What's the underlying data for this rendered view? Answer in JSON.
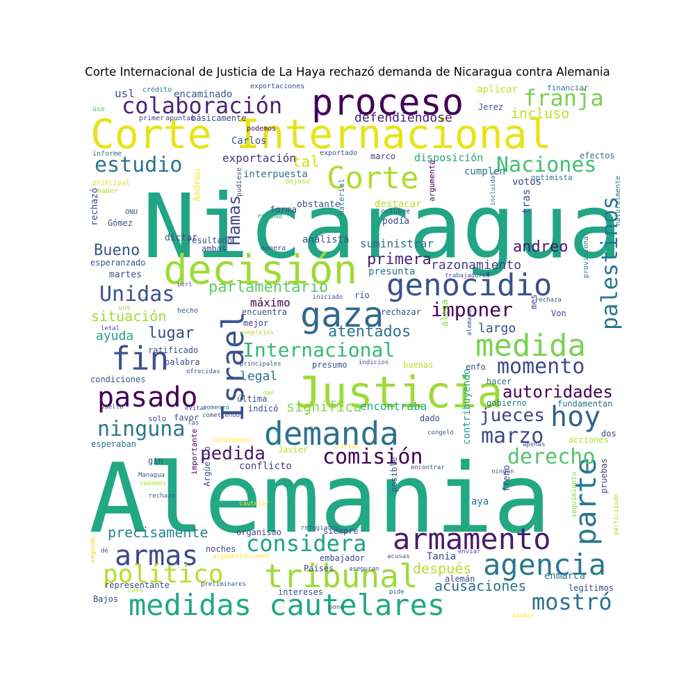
{
  "chart_data": {
    "type": "wordcloud",
    "title": "Corte Internacional de Justicia de La Haya rechazó demanda de Nicaragua contra Alemania",
    "palette": "viridis",
    "words": [
      {
        "text": "Nicaragua",
        "weight": 1.0,
        "color": "#21a585"
      },
      {
        "text": "Alemania",
        "weight": 0.98,
        "color": "#22a884"
      },
      {
        "text": "Corte Internacional",
        "weight": 0.57,
        "color": "#e7e419"
      },
      {
        "text": "Justicia",
        "weight": 0.48,
        "color": "#9fda3a"
      },
      {
        "text": "decisión",
        "weight": 0.46,
        "color": "#9fda3a"
      },
      {
        "text": "proceso",
        "weight": 0.42,
        "color": "#440154"
      },
      {
        "text": "demanda",
        "weight": 0.42,
        "color": "#2c728e"
      },
      {
        "text": "medidas cautelares",
        "weight": 0.4,
        "color": "#22a884"
      },
      {
        "text": "Israel",
        "weight": 0.38,
        "color": "#3b528b"
      },
      {
        "text": "medida",
        "weight": 0.37,
        "color": "#7ad151"
      },
      {
        "text": "Corte",
        "weight": 0.36,
        "color": "#addc30"
      },
      {
        "text": "tribunal",
        "weight": 0.36,
        "color": "#9fda3a"
      },
      {
        "text": "gaza",
        "weight": 0.36,
        "color": "#31688e"
      },
      {
        "text": "genocidio",
        "weight": 0.34,
        "color": "#3b528b"
      },
      {
        "text": "armamento",
        "weight": 0.33,
        "color": "#481a6c"
      },
      {
        "text": "agencia",
        "weight": 0.32,
        "color": "#2a788e"
      },
      {
        "text": "fin",
        "weight": 0.32,
        "color": "#3b528b"
      },
      {
        "text": "pasado",
        "weight": 0.3,
        "color": "#440154"
      },
      {
        "text": "parte",
        "weight": 0.3,
        "color": "#2a788e"
      },
      {
        "text": "palestinos",
        "weight": 0.29,
        "color": "#2a788e"
      },
      {
        "text": "hoy",
        "weight": 0.28,
        "color": "#35608d"
      },
      {
        "text": "armas",
        "weight": 0.27,
        "color": "#3e4989"
      },
      {
        "text": "político",
        "weight": 0.27,
        "color": "#b5de2b"
      },
      {
        "text": "considera",
        "weight": 0.27,
        "color": "#1fa188"
      },
      {
        "text": "mostró",
        "weight": 0.26,
        "color": "#2c728e"
      },
      {
        "text": "franja",
        "weight": 0.26,
        "color": "#7ad151"
      },
      {
        "text": "colaboración",
        "weight": 0.25,
        "color": "#482475"
      },
      {
        "text": "estudio",
        "weight": 0.25,
        "color": "#2c728e"
      },
      {
        "text": "Naciones",
        "weight": 0.25,
        "color": "#42be71"
      },
      {
        "text": "Internacional",
        "weight": 0.24,
        "color": "#35b779"
      },
      {
        "text": "Unidas",
        "weight": 0.24,
        "color": "#3b528b"
      },
      {
        "text": "imponer",
        "weight": 0.23,
        "color": "#440154"
      },
      {
        "text": "momento",
        "weight": 0.23,
        "color": "#3e4989"
      },
      {
        "text": "derecho",
        "weight": 0.23,
        "color": "#52c569"
      },
      {
        "text": "comisión",
        "weight": 0.23,
        "color": "#440154"
      },
      {
        "text": "marzo",
        "weight": 0.22,
        "color": "#3e4989"
      },
      {
        "text": "ninguna",
        "weight": 0.22,
        "color": "#2a788e"
      },
      {
        "text": "jueces",
        "weight": 0.19,
        "color": "#414487"
      },
      {
        "text": "Hamas",
        "weight": 0.19,
        "color": "#3e4989"
      },
      {
        "text": "pedida",
        "weight": 0.19,
        "color": "#481a6c"
      },
      {
        "text": "autoridades",
        "weight": 0.19,
        "color": "#440154"
      },
      {
        "text": "andreo",
        "weight": 0.18,
        "color": "#481a6c"
      },
      {
        "text": "primera",
        "weight": 0.18,
        "color": "#482475"
      },
      {
        "text": "atentados",
        "weight": 0.18,
        "color": "#2c728e"
      },
      {
        "text": "acusaciones",
        "weight": 0.17,
        "color": "#2c728e"
      },
      {
        "text": "precisamente",
        "weight": 0.17,
        "color": "#26828e"
      },
      {
        "text": "parlamentario",
        "weight": 0.17,
        "color": "#5ec962"
      },
      {
        "text": "significa",
        "weight": 0.17,
        "color": "#86d549"
      },
      {
        "text": "lugar",
        "weight": 0.16,
        "color": "#3e4989"
      },
      {
        "text": "Bueno",
        "weight": 0.16,
        "color": "#3b528b"
      },
      {
        "text": "situación",
        "weight": 0.16,
        "color": "#a0da39"
      },
      {
        "text": "incluso",
        "weight": 0.16,
        "color": "#c2df23"
      },
      {
        "text": "tal",
        "weight": 0.16,
        "color": "#d2e21b"
      },
      {
        "text": "razonamiento",
        "weight": 0.15,
        "color": "#433e85"
      },
      {
        "text": "después",
        "weight": 0.15,
        "color": "#b5de2b"
      },
      {
        "text": "legal",
        "weight": 0.14,
        "color": "#2c728e"
      },
      {
        "text": "defendiéndose",
        "weight": 0.14,
        "color": "#482173"
      },
      {
        "text": "largo",
        "weight": 0.13,
        "color": "#3e4989"
      },
      {
        "text": "ayuda",
        "weight": 0.13,
        "color": "#1fa188"
      },
      {
        "text": "exportación",
        "weight": 0.12,
        "color": "#46327e"
      },
      {
        "text": "suministrar",
        "weight": 0.12,
        "color": "#2e6e8e"
      },
      {
        "text": "máximo",
        "weight": 0.12,
        "color": "#440154"
      },
      {
        "text": "encontraba",
        "weight": 0.12,
        "color": "#22a884"
      },
      {
        "text": "disposición",
        "weight": 0.12,
        "color": "#20a386"
      },
      {
        "text": "conflicto",
        "weight": 0.12,
        "color": "#433e85"
      },
      {
        "text": "votos",
        "weight": 0.12,
        "color": "#3e4989"
      },
      {
        "text": "cumplen",
        "weight": 0.12,
        "color": "#2c728e"
      },
      {
        "text": "interpuesta",
        "weight": 0.12,
        "color": "#2c728e"
      },
      {
        "text": "presunta",
        "weight": 0.11,
        "color": "#2c728e"
      },
      {
        "text": "analista",
        "weight": 0.11,
        "color": "#3b528b"
      },
      {
        "text": "encaminado",
        "weight": 0.11,
        "color": "#38598c"
      },
      {
        "text": "Carlos",
        "weight": 0.1,
        "color": "#3b528b"
      },
      {
        "text": "contribuyendo",
        "weight": 0.11,
        "color": "#1fa188"
      },
      {
        "text": "enmarca",
        "weight": 0.11,
        "color": "#2c728e"
      },
      {
        "text": "Tania",
        "weight": 0.11,
        "color": "#3e4989"
      },
      {
        "text": "aya",
        "weight": 0.11,
        "color": "#2c728e"
      },
      {
        "text": "gobierno",
        "weight": 0.09,
        "color": "#2a788e"
      },
      {
        "text": "fundamentan",
        "weight": 0.09,
        "color": "#2c728e"
      },
      {
        "text": "usl",
        "weight": 0.12,
        "color": "#3e4989"
      },
      {
        "text": "Jerez",
        "weight": 0.09,
        "color": "#3b528b"
      },
      {
        "text": "básicamente",
        "weight": 0.09,
        "color": "#3e4989"
      },
      {
        "text": "marco",
        "weight": 0.09,
        "color": "#414487"
      },
      {
        "text": "efectos",
        "weight": 0.09,
        "color": "#2c728e"
      },
      {
        "text": "optimista",
        "weight": 0.08,
        "color": "#2c728e"
      },
      {
        "text": "aplicar",
        "weight": 0.09,
        "color": "#c8e020"
      },
      {
        "text": "financiar",
        "weight": 0.08,
        "color": "#2c728e"
      },
      {
        "text": "crédito",
        "weight": 0.06,
        "color": "#2c728e"
      },
      {
        "text": "exportaciones",
        "weight": 0.06,
        "color": "#3e4989"
      },
      {
        "text": "primer",
        "weight": 0.06,
        "color": "#3e4989"
      },
      {
        "text": "apuntan",
        "weight": 0.06,
        "color": "#3e4989"
      },
      {
        "text": "podemos",
        "weight": 0.06,
        "color": "#440154"
      },
      {
        "text": "use",
        "weight": 0.06,
        "color": "#52c569"
      },
      {
        "text": "informe",
        "weight": 0.06,
        "color": "#2c728e"
      },
      {
        "text": "exportado",
        "weight": 0.06,
        "color": "#3b528b"
      },
      {
        "text": "principal",
        "weight": 0.06,
        "color": "#d8e219"
      },
      {
        "text": "haber",
        "weight": 0.06,
        "color": "#b5de2b"
      },
      {
        "text": "dejase",
        "weight": 0.06,
        "color": "#addc30"
      },
      {
        "text": "pudiese",
        "weight": 0.06,
        "color": "#3b528b"
      },
      {
        "text": "Andreu",
        "weight": 0.08,
        "color": "#fde725"
      },
      {
        "text": "rechazó",
        "weight": 0.09,
        "color": "#3e4989"
      },
      {
        "text": "ONU",
        "weight": 0.06,
        "color": "#3b528b"
      },
      {
        "text": "Gómez",
        "weight": 0.09,
        "color": "#3b528b"
      },
      {
        "text": "retomó",
        "weight": 0.06,
        "color": "#1fa188"
      },
      {
        "text": "obstante",
        "weight": 0.09,
        "color": "#3b528b"
      },
      {
        "text": "destacar",
        "weight": 0.09,
        "color": "#b5de2b"
      },
      {
        "text": "octubre",
        "weight": 0.06,
        "color": "#3b528b"
      },
      {
        "text": "argumentó",
        "weight": 0.07,
        "color": "#440154"
      },
      {
        "text": "forma",
        "weight": 0.09,
        "color": "#3e4989"
      },
      {
        "text": "podía",
        "weight": 0.09,
        "color": "#3e4989"
      },
      {
        "text": "material",
        "weight": 0.07,
        "color": "#2c728e"
      },
      {
        "text": "incluidas",
        "weight": 0.06,
        "color": "#2c728e"
      },
      {
        "text": "tras",
        "weight": 0.1,
        "color": "#3e4989"
      },
      {
        "text": "naturalmente",
        "weight": 0.06,
        "color": "#2c728e"
      },
      {
        "text": "dictar",
        "weight": 0.09,
        "color": "#3e4989"
      },
      {
        "text": "resultado",
        "weight": 0.08,
        "color": "#3e4989"
      },
      {
        "text": "ambas",
        "weight": 0.08,
        "color": "#3e4989"
      },
      {
        "text": "manera",
        "weight": 0.06,
        "color": "#3b528b"
      },
      {
        "text": "esperanzado",
        "weight": 0.08,
        "color": "#3b528b"
      },
      {
        "text": "martes",
        "weight": 0.09,
        "color": "#3e4989"
      },
      {
        "text": "trabajadores",
        "weight": 0.05,
        "color": "#3b528b"
      },
      {
        "text": "berl",
        "weight": 0.06,
        "color": "#3b528b"
      },
      {
        "text": "iniciado",
        "weight": 0.06,
        "color": "#3b528b"
      },
      {
        "text": "río",
        "weight": 0.08,
        "color": "#3e4989"
      },
      {
        "text": "provisional",
        "weight": 0.06,
        "color": "#2c728e"
      },
      {
        "text": "rechaza",
        "weight": 0.06,
        "color": "#3b528b"
      },
      {
        "text": "vos",
        "weight": 0.07,
        "color": "#a0da39"
      },
      {
        "text": "hecho",
        "weight": 0.06,
        "color": "#3b528b"
      },
      {
        "text": "encuentra",
        "weight": 0.08,
        "color": "#3e4989"
      },
      {
        "text": "rechazar",
        "weight": 0.08,
        "color": "#3e4989"
      },
      {
        "text": "mes",
        "weight": 0.08,
        "color": "#3e4989"
      },
      {
        "text": "Von",
        "weight": 0.08,
        "color": "#3e4989"
      },
      {
        "text": "letal",
        "weight": 0.06,
        "color": "#3b528b"
      },
      {
        "text": "mejor",
        "weight": 0.08,
        "color": "#3e4989"
      },
      {
        "text": "complejos",
        "weight": 0.06,
        "color": "#b5de2b"
      },
      {
        "text": "alega",
        "weight": 0.09,
        "color": "#86d549"
      },
      {
        "text": "alemanas",
        "weight": 0.06,
        "color": "#3b528b"
      },
      {
        "text": "ratificado",
        "weight": 0.08,
        "color": "#3e4989"
      },
      {
        "text": "palabra",
        "weight": 0.08,
        "color": "#3e4989"
      },
      {
        "text": "principales",
        "weight": 0.06,
        "color": "#3b528b"
      },
      {
        "text": "presumo",
        "weight": 0.08,
        "color": "#3b528b"
      },
      {
        "text": "indicios",
        "weight": 0.06,
        "color": "#3b528b"
      },
      {
        "text": "buenas",
        "weight": 0.08,
        "color": "#b5de2b"
      },
      {
        "text": "enfo",
        "weight": 0.08,
        "color": "#3e4989"
      },
      {
        "text": "ofrecidas",
        "weight": 0.06,
        "color": "#3b528b"
      },
      {
        "text": "condiciones",
        "weight": 0.08,
        "color": "#3b528b"
      },
      {
        "text": "hacer",
        "weight": 0.08,
        "color": "#2c728e"
      },
      {
        "text": "dan",
        "weight": 0.06,
        "color": "#addc30"
      },
      {
        "text": "última",
        "weight": 0.09,
        "color": "#3e4989"
      },
      {
        "text": "indicó",
        "weight": 0.08,
        "color": "#3e4989"
      },
      {
        "text": "comenzó",
        "weight": 0.06,
        "color": "#2c728e"
      },
      {
        "text": "vuelto",
        "weight": 0.06,
        "color": "#3b528b"
      },
      {
        "text": "evitar",
        "weight": 0.06,
        "color": "#3b528b"
      },
      {
        "text": "favor",
        "weight": 0.09,
        "color": "#3e4989"
      },
      {
        "text": "solo",
        "weight": 0.07,
        "color": "#3e4989"
      },
      {
        "text": "Tas",
        "weight": 0.06,
        "color": "#3b528b"
      },
      {
        "text": "cometiendo",
        "weight": 0.06,
        "color": "#3b528b"
      },
      {
        "text": "dado",
        "weight": 0.08,
        "color": "#3e4989"
      },
      {
        "text": "esperaban",
        "weight": 0.08,
        "color": "#2c728e"
      },
      {
        "text": "recordemos",
        "weight": 0.06,
        "color": "#fde725"
      },
      {
        "text": "cifras",
        "weight": 0.06,
        "color": "#fde725"
      },
      {
        "text": "congeló",
        "weight": 0.06,
        "color": "#3b528b"
      },
      {
        "text": "apenas",
        "weight": 0.06,
        "color": "#3b528b"
      },
      {
        "text": "acciones",
        "weight": 0.08,
        "color": "#b5de2b"
      },
      {
        "text": "dos",
        "weight": 0.08,
        "color": "#3e4989"
      },
      {
        "text": "gin",
        "weight": 0.08,
        "color": "#3e4989"
      },
      {
        "text": "Javier",
        "weight": 0.08,
        "color": "#b5de2b"
      },
      {
        "text": "encontrar",
        "weight": 0.06,
        "color": "#3b528b"
      },
      {
        "text": "ningún",
        "weight": 0.06,
        "color": "#3b528b"
      },
      {
        "text": "Managua",
        "weight": 0.06,
        "color": "#3b528b"
      },
      {
        "text": "sabemos",
        "weight": 0.06,
        "color": "#b5de2b"
      },
      {
        "text": "rechazo",
        "weight": 0.06,
        "color": "#3b528b"
      },
      {
        "text": "importante",
        "weight": 0.07,
        "color": "#440154"
      },
      {
        "text": "Argüello",
        "weight": 0.08,
        "color": "#3b528b"
      },
      {
        "text": "cautelar",
        "weight": 0.06,
        "color": "#fde725"
      },
      {
        "text": "posible",
        "weight": 0.08,
        "color": "#3b528b"
      },
      {
        "text": "freno",
        "weight": 0.08,
        "color": "#3e4989"
      },
      {
        "text": "pruebas",
        "weight": 0.07,
        "color": "#3e4989"
      },
      {
        "text": "seguimiento",
        "weight": 0.06,
        "color": "#86d549"
      },
      {
        "text": "refugiados",
        "weight": 0.06,
        "color": "#3b528b"
      },
      {
        "text": "organismo",
        "weight": 0.08,
        "color": "#3e4989"
      },
      {
        "text": "siempre",
        "weight": 0.08,
        "color": "#3e4989"
      },
      {
        "text": "participado",
        "weight": 0.06,
        "color": "#b5de2b"
      },
      {
        "text": "dé",
        "weight": 0.06,
        "color": "#3b528b"
      },
      {
        "text": "noches",
        "weight": 0.08,
        "color": "#3e4989"
      },
      {
        "text": "argumentaciones",
        "weight": 0.06,
        "color": "#fde725"
      },
      {
        "text": "embajador",
        "weight": 0.08,
        "color": "#3e4989"
      },
      {
        "text": "acusas",
        "weight": 0.06,
        "color": "#3b528b"
      },
      {
        "text": "enviar",
        "weight": 0.06,
        "color": "#3b528b"
      },
      {
        "text": "segundo",
        "weight": 0.06,
        "color": "#d8e219"
      },
      {
        "text": "alemán",
        "weight": 0.08,
        "color": "#3e4989"
      },
      {
        "text": "legítimos",
        "weight": 0.08,
        "color": "#3e4989"
      },
      {
        "text": "representante",
        "weight": 0.08,
        "color": "#3e4989"
      },
      {
        "text": "preliminares",
        "weight": 0.06,
        "color": "#3b528b"
      },
      {
        "text": "caso",
        "weight": 0.06,
        "color": "#b5de2b"
      },
      {
        "text": "intereses",
        "weight": 0.08,
        "color": "#3e4989"
      },
      {
        "text": "pide",
        "weight": 0.06,
        "color": "#3b528b"
      },
      {
        "text": "Bajos",
        "weight": 0.08,
        "color": "#3e4989"
      },
      {
        "text": "pone",
        "weight": 0.06,
        "color": "#3b528b"
      },
      {
        "text": "asumir",
        "weight": 0.06,
        "color": "#fde725"
      },
      {
        "text": "aseguran",
        "weight": 0.06,
        "color": "#3b528b"
      },
      {
        "text": "Países",
        "weight": 0.08,
        "color": "#3e4989"
      }
    ]
  }
}
